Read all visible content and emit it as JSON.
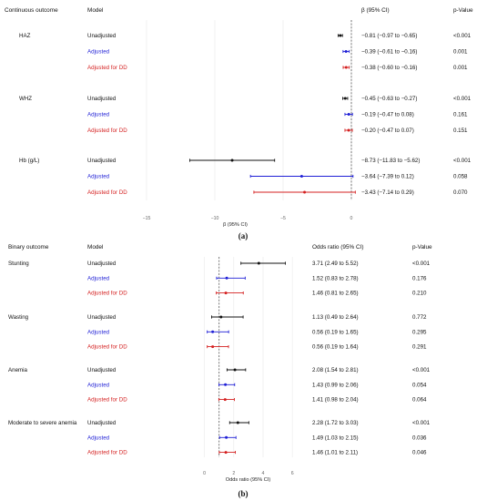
{
  "colors": {
    "Unadjusted": "#111111",
    "Adjusted": "#1f1fd6",
    "Adjusted for DD": "#d41f1f"
  },
  "chart_data": [
    {
      "type": "forest",
      "panel_label": "(a)",
      "headers": {
        "outcome": "Continuous outcome",
        "model": "Model",
        "estimate": "β (95% CI)",
        "pvalue": "p-Value"
      },
      "xlabel": "β (95% CI)",
      "xlim": [
        -16,
        0.6
      ],
      "xticks": [
        -15,
        -10,
        -5,
        0
      ],
      "reference_line": 0,
      "groups": [
        {
          "outcome": "HAZ",
          "rows": [
            {
              "model": "Unadjusted",
              "est": -0.81,
              "lo": -0.97,
              "hi": -0.65,
              "ci_text": "−0.81 (−0.97 to −0.65)",
              "p": "<0.001"
            },
            {
              "model": "Adjusted",
              "est": -0.39,
              "lo": -0.61,
              "hi": -0.16,
              "ci_text": "−0.39 (−0.61 to −0.16)",
              "p": "0.001"
            },
            {
              "model": "Adjusted for DD",
              "est": -0.38,
              "lo": -0.6,
              "hi": -0.16,
              "ci_text": "−0.38 (−0.60 to −0.16)",
              "p": "0.001"
            }
          ]
        },
        {
          "outcome": "WHZ",
          "rows": [
            {
              "model": "Unadjusted",
              "est": -0.45,
              "lo": -0.63,
              "hi": -0.27,
              "ci_text": "−0.45 (−0.63 to −0.27)",
              "p": "<0.001"
            },
            {
              "model": "Adjusted",
              "est": -0.19,
              "lo": -0.47,
              "hi": 0.08,
              "ci_text": "−0.19 (−0.47 to 0.08)",
              "p": "0.161"
            },
            {
              "model": "Adjusted for DD",
              "est": -0.2,
              "lo": -0.47,
              "hi": 0.07,
              "ci_text": "−0.20 (−0.47 to 0.07)",
              "p": "0.151"
            }
          ]
        },
        {
          "outcome": "Hb (g/L)",
          "rows": [
            {
              "model": "Unadjusted",
              "est": -8.73,
              "lo": -11.83,
              "hi": -5.62,
              "ci_text": "−8.73 (−11.83 to −5.62)",
              "p": "<0.001"
            },
            {
              "model": "Adjusted",
              "est": -3.64,
              "lo": -7.39,
              "hi": 0.12,
              "ci_text": "−3.64 (−7.39 to 0.12)",
              "p": "0.058"
            },
            {
              "model": "Adjusted for DD",
              "est": -3.43,
              "lo": -7.14,
              "hi": 0.29,
              "ci_text": "−3.43 (−7.14 to 0.29)",
              "p": "0.070"
            }
          ]
        }
      ]
    },
    {
      "type": "forest",
      "panel_label": "(b)",
      "headers": {
        "outcome": "Binary outcome",
        "model": "Model",
        "estimate": "Odds ratio (95% CI)",
        "pvalue": "p-Value"
      },
      "xlabel": "Odds ratio (95% CI)",
      "xlim": [
        -0.1,
        6.3
      ],
      "xticks": [
        0,
        2,
        4,
        6
      ],
      "reference_line": 1,
      "groups": [
        {
          "outcome": "Stunting",
          "rows": [
            {
              "model": "Unadjusted",
              "est": 3.71,
              "lo": 2.49,
              "hi": 5.52,
              "ci_text": "3.71 (2.49 to 5.52)",
              "p": "<0.001"
            },
            {
              "model": "Adjusted",
              "est": 1.52,
              "lo": 0.83,
              "hi": 2.78,
              "ci_text": "1.52 (0.83 to 2.78)",
              "p": "0.176"
            },
            {
              "model": "Adjusted for DD",
              "est": 1.46,
              "lo": 0.81,
              "hi": 2.65,
              "ci_text": "1.46 (0.81 to 2.65)",
              "p": "0.210"
            }
          ]
        },
        {
          "outcome": "Wasting",
          "rows": [
            {
              "model": "Unadjusted",
              "est": 1.13,
              "lo": 0.49,
              "hi": 2.64,
              "ci_text": "1.13 (0.49 to 2.64)",
              "p": "0.772"
            },
            {
              "model": "Adjusted",
              "est": 0.56,
              "lo": 0.19,
              "hi": 1.65,
              "ci_text": "0.56 (0.19 to 1.65)",
              "p": "0.295"
            },
            {
              "model": "Adjusted for DD",
              "est": 0.56,
              "lo": 0.19,
              "hi": 1.64,
              "ci_text": "0.56 (0.19 to 1.64)",
              "p": "0.291"
            }
          ]
        },
        {
          "outcome": "Anemia",
          "rows": [
            {
              "model": "Unadjusted",
              "est": 2.08,
              "lo": 1.54,
              "hi": 2.81,
              "ci_text": "2.08 (1.54 to 2.81)",
              "p": "<0.001"
            },
            {
              "model": "Adjusted",
              "est": 1.43,
              "lo": 0.99,
              "hi": 2.06,
              "ci_text": "1.43 (0.99 to 2.06)",
              "p": "0.054"
            },
            {
              "model": "Adjusted for DD",
              "est": 1.41,
              "lo": 0.98,
              "hi": 2.04,
              "ci_text": "1.41 (0.98 to 2.04)",
              "p": "0.064"
            }
          ]
        },
        {
          "outcome": "Moderate to severe anemia",
          "rows": [
            {
              "model": "Unadjusted",
              "est": 2.28,
              "lo": 1.72,
              "hi": 3.03,
              "ci_text": "2.28 (1.72 to 3.03)",
              "p": "<0.001"
            },
            {
              "model": "Adjusted",
              "est": 1.49,
              "lo": 1.03,
              "hi": 2.15,
              "ci_text": "1.49 (1.03 to 2.15)",
              "p": "0.036"
            },
            {
              "model": "Adjusted for DD",
              "est": 1.46,
              "lo": 1.01,
              "hi": 2.11,
              "ci_text": "1.46 (1.01 to 2.11)",
              "p": "0.046"
            }
          ]
        }
      ]
    }
  ]
}
